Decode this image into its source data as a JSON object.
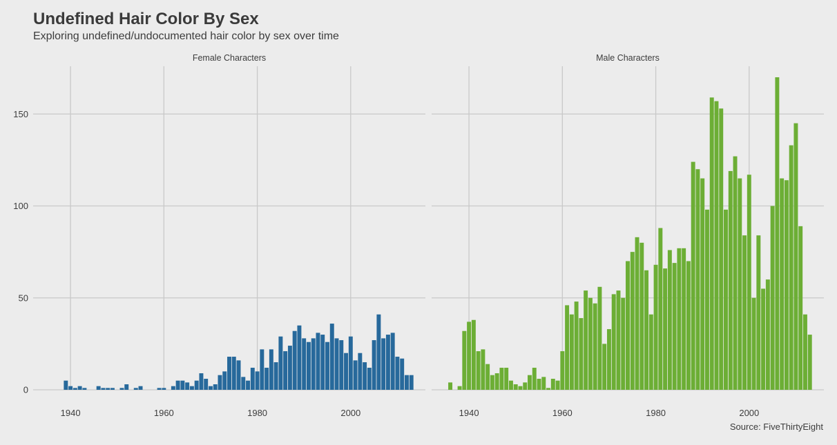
{
  "title": "Undefined Hair Color By Sex",
  "subtitle": "Exploring undefined/undocumented hair color by sex over time",
  "caption": "Source: FiveThirtyEight",
  "chart_data": [
    {
      "type": "bar",
      "facet": "Female Characters",
      "color": "#27699b",
      "xlim": [
        1932,
        2016
      ],
      "ylim": [
        0,
        176
      ],
      "x_ticks": [
        1940,
        1960,
        1980,
        2000
      ],
      "y_ticks": [
        0,
        50,
        100,
        150
      ],
      "x": [
        1939,
        1940,
        1941,
        1942,
        1943,
        1944,
        1946,
        1947,
        1948,
        1949,
        1951,
        1952,
        1954,
        1955,
        1959,
        1960,
        1962,
        1963,
        1964,
        1965,
        1966,
        1967,
        1968,
        1969,
        1970,
        1971,
        1972,
        1973,
        1974,
        1975,
        1976,
        1977,
        1978,
        1979,
        1980,
        1981,
        1982,
        1983,
        1984,
        1985,
        1986,
        1987,
        1988,
        1989,
        1990,
        1991,
        1992,
        1993,
        1994,
        1995,
        1996,
        1997,
        1998,
        1999,
        2000,
        2001,
        2002,
        2003,
        2004,
        2005,
        2006,
        2007,
        2008,
        2009,
        2010,
        2011,
        2012,
        2013
      ],
      "values": [
        5,
        2,
        1,
        2,
        1,
        0,
        2,
        1,
        1,
        1,
        1,
        3,
        1,
        2,
        1,
        1,
        2,
        5,
        5,
        4,
        2,
        5,
        9,
        6,
        2,
        3,
        8,
        10,
        18,
        18,
        16,
        7,
        5,
        12,
        10,
        22,
        12,
        22,
        15,
        29,
        21,
        24,
        32,
        35,
        28,
        26,
        28,
        31,
        30,
        26,
        36,
        28,
        27,
        20,
        29,
        16,
        20,
        15,
        12,
        27,
        41,
        28,
        30,
        31,
        18,
        17,
        8,
        8
      ]
    },
    {
      "type": "bar",
      "facet": "Male Characters",
      "color": "#6cae35",
      "xlim": [
        1932,
        2016
      ],
      "ylim": [
        0,
        176
      ],
      "x_ticks": [
        1940,
        1960,
        1980,
        2000
      ],
      "y_ticks": [
        0,
        50,
        100,
        150
      ],
      "x": [
        1936,
        1938,
        1939,
        1940,
        1941,
        1942,
        1943,
        1944,
        1945,
        1946,
        1947,
        1948,
        1949,
        1950,
        1951,
        1952,
        1953,
        1954,
        1955,
        1956,
        1957,
        1958,
        1959,
        1960,
        1961,
        1962,
        1963,
        1964,
        1965,
        1966,
        1967,
        1968,
        1969,
        1970,
        1971,
        1972,
        1973,
        1974,
        1975,
        1976,
        1977,
        1978,
        1979,
        1980,
        1981,
        1982,
        1983,
        1984,
        1985,
        1986,
        1987,
        1988,
        1989,
        1990,
        1991,
        1992,
        1993,
        1994,
        1995,
        1996,
        1997,
        1998,
        1999,
        2000,
        2001,
        2002,
        2003,
        2004,
        2005,
        2006,
        2007,
        2008,
        2009,
        2010,
        2011,
        2012,
        2013
      ],
      "values": [
        4,
        2,
        32,
        37,
        38,
        21,
        22,
        14,
        8,
        9,
        12,
        12,
        5,
        3,
        2,
        4,
        8,
        12,
        6,
        7,
        1,
        6,
        5,
        21,
        46,
        41,
        48,
        39,
        54,
        50,
        47,
        56,
        25,
        33,
        52,
        54,
        50,
        70,
        75,
        83,
        80,
        65,
        41,
        68,
        88,
        66,
        76,
        69,
        77,
        77,
        70,
        124,
        120,
        115,
        98,
        159,
        157,
        153,
        98,
        119,
        127,
        115,
        84,
        117,
        50,
        84,
        55,
        60,
        100,
        170,
        115,
        114,
        133,
        145,
        89,
        41,
        30
      ]
    }
  ]
}
